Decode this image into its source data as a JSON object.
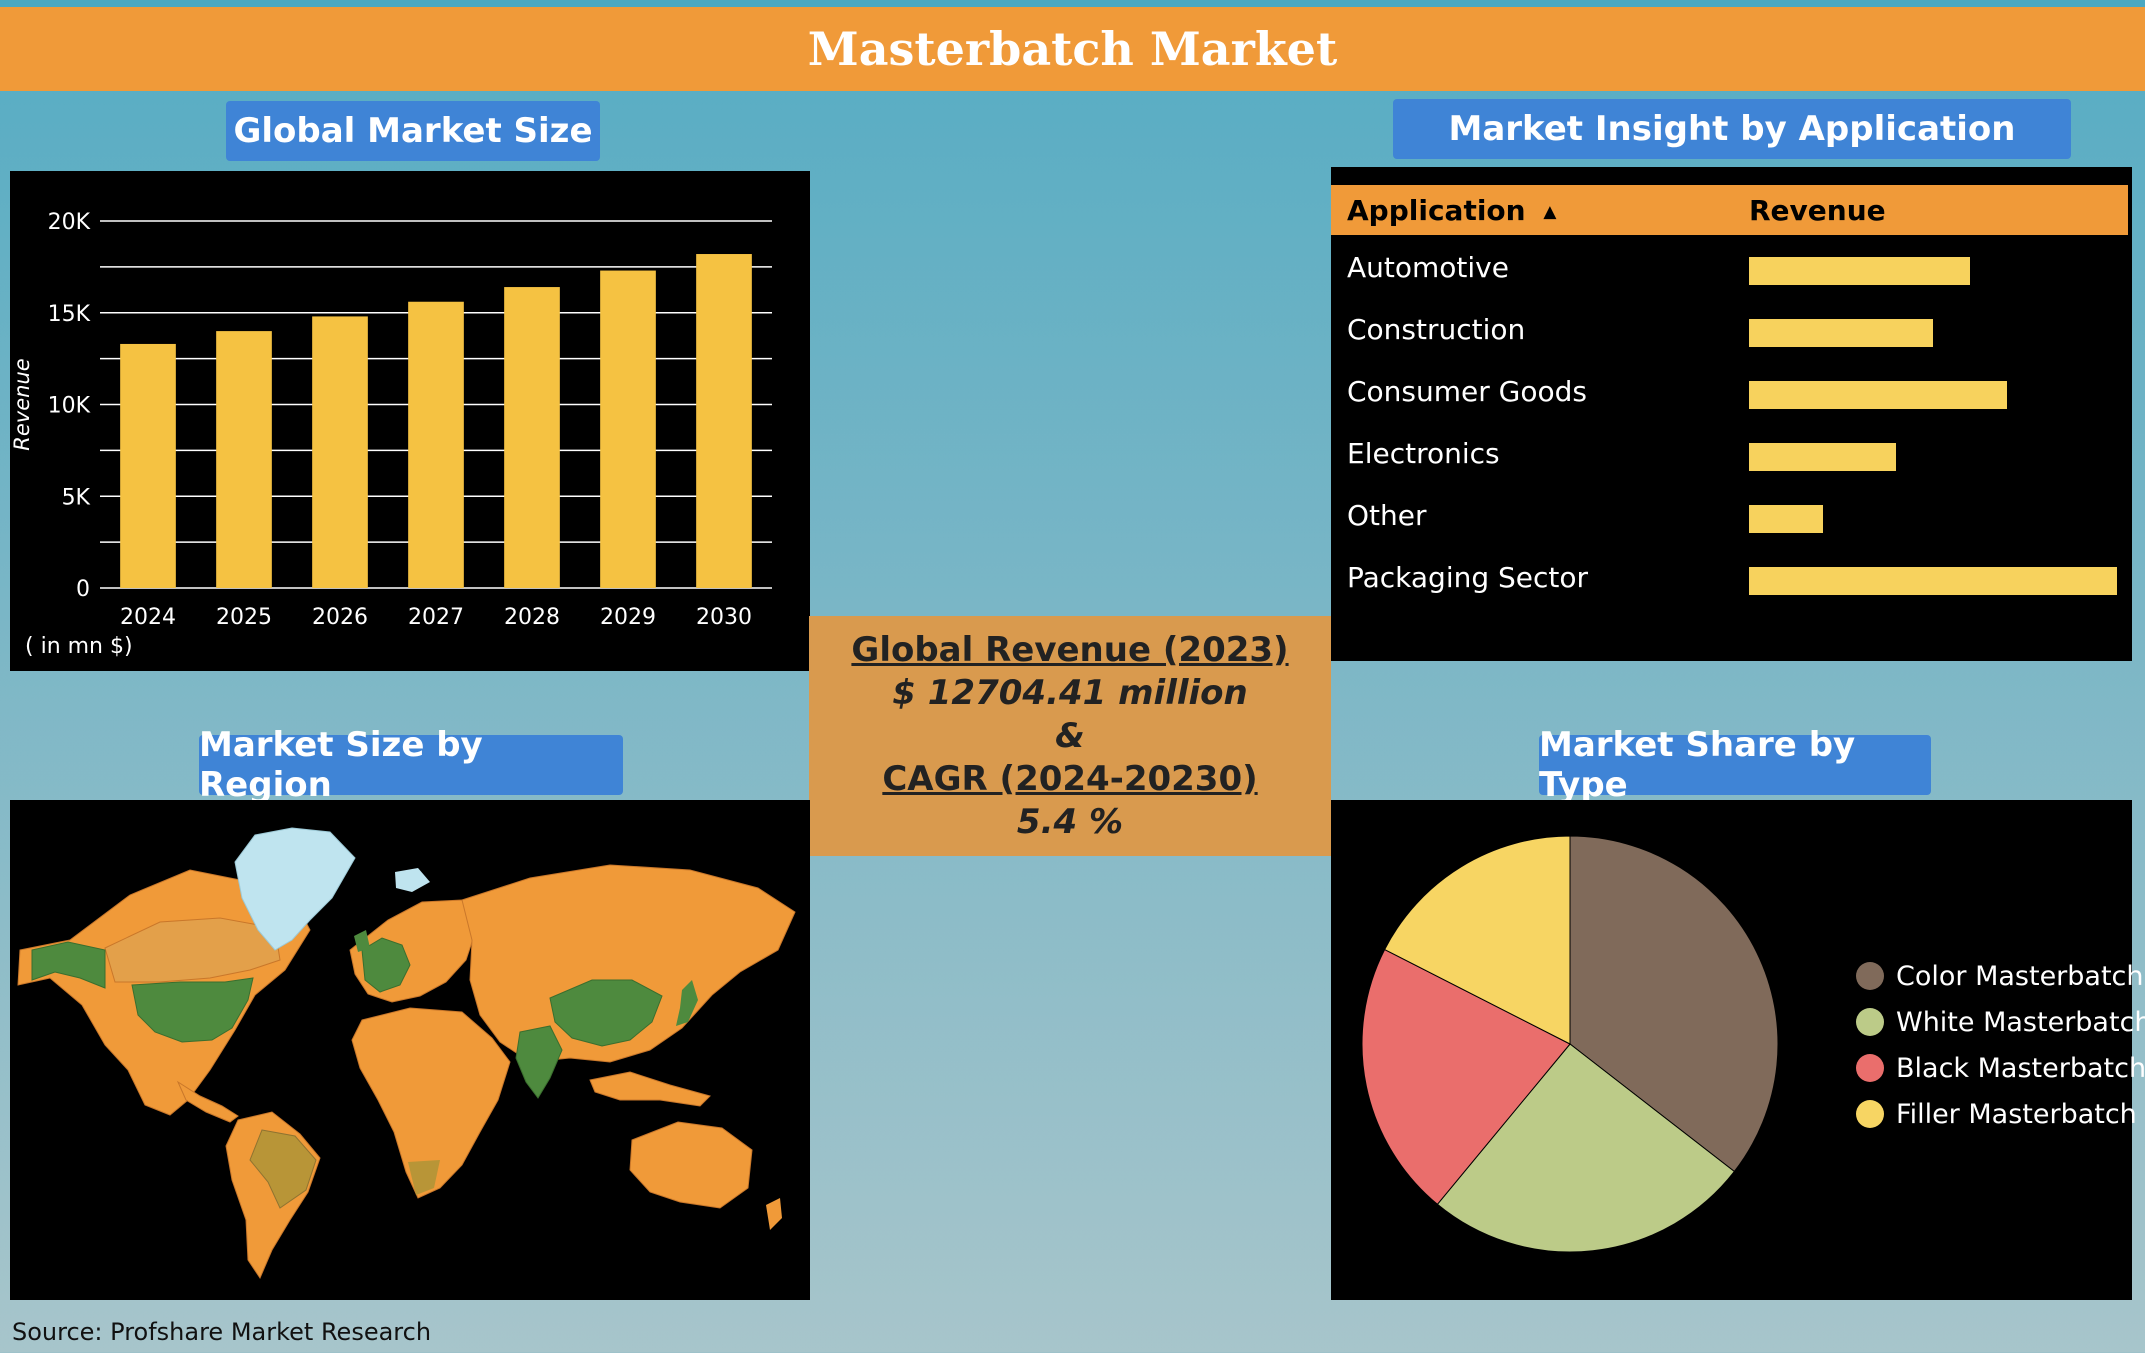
{
  "header": {
    "title": "Masterbatch Market"
  },
  "panels": {
    "global_market_size": "Global Market Size",
    "market_insight": "Market Insight by Application",
    "market_region": "Market Size by Region",
    "market_share": "Market Share by Type"
  },
  "center": {
    "line1": "Global Revenue (2023)",
    "line2": "$ 12704.41 million",
    "line3": "&",
    "line4": "CAGR (2024-20230)",
    "line5": "5.4 %"
  },
  "source": "Source: Profshare Market Research",
  "colors": {
    "bar": "#f5c242",
    "header": "#f09a39",
    "pill": "#3f84d6",
    "map_orange": "#f09a39",
    "map_green": "#4e8a3e",
    "map_ice": "#bfe4ef"
  },
  "map": {
    "icon": "world-map"
  },
  "chart_data": [
    {
      "type": "bar",
      "title": "Global Market Size",
      "categories": [
        "2024",
        "2025",
        "2026",
        "2027",
        "2028",
        "2029",
        "2030"
      ],
      "values": [
        13300,
        14000,
        14800,
        15600,
        16400,
        17300,
        18200
      ],
      "ylabel": "Revenue",
      "unit_note": "( in mn $)",
      "ylim": [
        0,
        20000
      ],
      "yticks": [
        0,
        5000,
        10000,
        15000,
        20000
      ],
      "ytick_labels": [
        "0",
        "5K",
        "10K",
        "15K",
        "20K"
      ],
      "grid": true
    },
    {
      "type": "table",
      "title": "Market Insight by Application",
      "columns": [
        "Application",
        "Revenue"
      ],
      "categories": [
        "Automotive",
        "Construction",
        "Consumer Goods",
        "Electronics",
        "Other",
        "Packaging Sector"
      ],
      "values": [
        0.6,
        0.5,
        0.7,
        0.4,
        0.2,
        1.0
      ]
    },
    {
      "type": "pie",
      "title": "Market Share by Type",
      "categories": [
        "Color Masterbatch",
        "White Masterbatch",
        "Black Masterbatch",
        "Filler Masterbatch"
      ],
      "values": [
        35.5,
        25.5,
        21.5,
        17.5
      ],
      "colors": [
        "#806a5a",
        "#bccb88",
        "#ea6e6c",
        "#f7d563"
      ],
      "legend": "right"
    }
  ]
}
